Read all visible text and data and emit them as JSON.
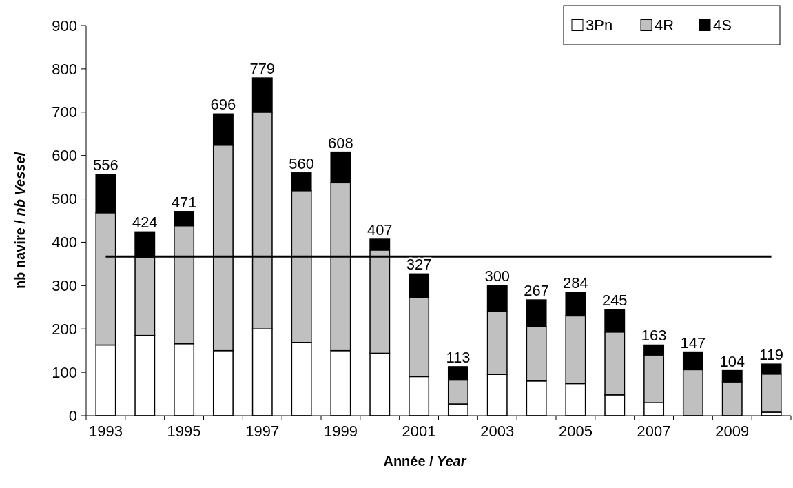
{
  "chart_data": {
    "type": "bar",
    "stacked": true,
    "xlabel": "Année / Year",
    "ylabel": "nb navire / nb Vessel",
    "categories": [
      "1993",
      null,
      "1995",
      null,
      "1997",
      null,
      "1999",
      null,
      "2001",
      null,
      "2003",
      null,
      "2005",
      null,
      "2007",
      null,
      "2009",
      null
    ],
    "series": [
      {
        "name": "3Pn",
        "color": "#ffffff",
        "values": [
          163,
          185,
          166,
          150,
          200,
          169,
          150,
          144,
          90,
          27,
          95,
          80,
          74,
          48,
          30,
          0,
          0,
          8
        ]
      },
      {
        "name": "4R",
        "color": "#c0c0c0",
        "values": [
          305,
          181,
          272,
          474,
          500,
          350,
          387,
          238,
          183,
          55,
          145,
          125,
          156,
          145,
          110,
          106,
          78,
          88
        ]
      },
      {
        "name": "4S",
        "color": "#000000",
        "values": [
          88,
          58,
          33,
          72,
          79,
          41,
          71,
          25,
          54,
          31,
          60,
          62,
          54,
          52,
          23,
          41,
          26,
          23
        ]
      }
    ],
    "totals": [
      "556",
      "424",
      "471",
      "696",
      "779",
      "560",
      "608",
      "407",
      "327",
      "113",
      "300",
      "267",
      "284",
      "245",
      "163",
      "147",
      "104",
      "119"
    ],
    "ylim": [
      0,
      900
    ],
    "yticks": [
      0,
      100,
      200,
      300,
      400,
      500,
      600,
      700,
      800,
      900
    ],
    "ref_lines": [
      {
        "axis": "y",
        "value": 367,
        "color": "#000000"
      }
    ],
    "grid": false,
    "legend": "top right"
  }
}
